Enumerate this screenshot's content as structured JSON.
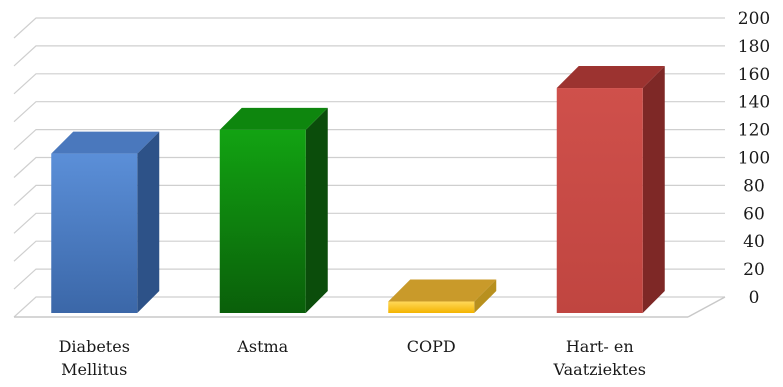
{
  "chart_data": {
    "type": "bar",
    "categories": [
      [
        "Diabetes",
        "Mellitus"
      ],
      [
        "Astma"
      ],
      [
        "COPD"
      ],
      [
        "Hart- en",
        "Vaatziektes"
      ]
    ],
    "values": [
      120,
      137,
      14,
      167
    ],
    "yticks": [
      0,
      20,
      40,
      60,
      80,
      100,
      120,
      140,
      160,
      180,
      200
    ],
    "ylim": [
      0,
      200
    ],
    "y_axis_side": "right",
    "grid": true,
    "legend": "none",
    "bar_colors": [
      {
        "top": "#5b8fd8",
        "bottom": "#3b67a8",
        "side": "#2d5288",
        "cap": "#4a78bd"
      },
      {
        "top": "#12a312",
        "bottom": "#0a5f0a",
        "side": "#0b4d0b",
        "cap": "#0e860e"
      },
      {
        "top": "#ffd85a",
        "bottom": "#f4b400",
        "side": "#b8901e",
        "cap": "#c99a2a"
      },
      {
        "top": "#cf504b",
        "bottom": "#c04540",
        "side": "#7e2826",
        "cap": "#9c3330"
      }
    ]
  }
}
